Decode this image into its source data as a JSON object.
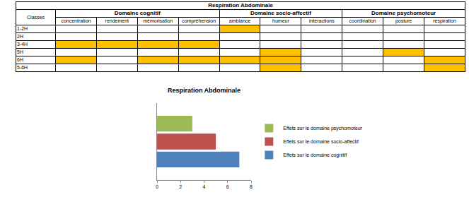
{
  "table": {
    "title": "Respiration Abdominale",
    "row_header": "Classes",
    "groups": [
      {
        "name": "Domaine cognitif",
        "columns": [
          "concentration",
          "rendement",
          "mémorisation",
          "compréhension"
        ]
      },
      {
        "name": "Domaine socio-affectif",
        "columns": [
          "ambiance",
          "humeur",
          "interactions"
        ]
      },
      {
        "name": "Domaine psychomoteur",
        "columns": [
          "coordination",
          "posture",
          "respiration"
        ]
      }
    ],
    "rows": [
      {
        "label": "1-2H",
        "highlighted": [
          "ambiance"
        ]
      },
      {
        "label": "2H",
        "highlighted": []
      },
      {
        "label": "3-4H",
        "highlighted": [
          "concentration",
          "rendement",
          "mémorisation",
          "compréhension"
        ]
      },
      {
        "label": "5H",
        "highlighted": [
          "humeur",
          "posture"
        ]
      },
      {
        "label": "6H",
        "highlighted": [
          "concentration",
          "mémorisation",
          "compréhension",
          "ambiance",
          "humeur",
          "respiration"
        ]
      },
      {
        "label": "5-6H",
        "highlighted": [
          "humeur",
          "respiration"
        ]
      }
    ]
  },
  "chart_data": {
    "type": "bar",
    "orientation": "horizontal",
    "title": "Respiration Abdominale",
    "categories": [
      null
    ],
    "series": [
      {
        "name": "Effets sur le domaine cognitif",
        "color": "#4F81BD",
        "values": [
          7
        ]
      },
      {
        "name": "Effets sur le domaine socio-affectif",
        "color": "#C0504D",
        "values": [
          5
        ]
      },
      {
        "name": "Effets sur le domaine psychomoteur",
        "color": "#9BBB59",
        "values": [
          3
        ]
      }
    ],
    "xlim": [
      0,
      8
    ],
    "xticks": [
      0,
      2,
      4,
      6,
      8
    ],
    "grid": false,
    "legend": "right",
    "tick_labels": "x"
  }
}
